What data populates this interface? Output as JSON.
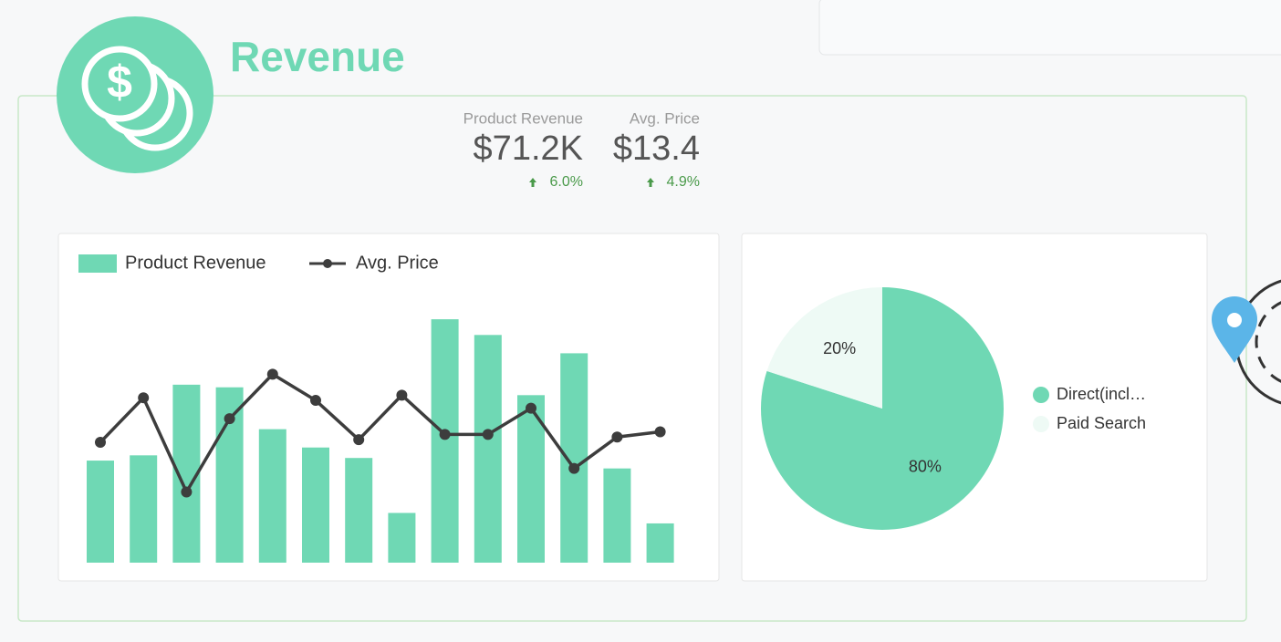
{
  "header": {
    "title": "Revenue"
  },
  "kpis": [
    {
      "label": "Product Revenue",
      "value": "$71.2K",
      "change": "6.0%"
    },
    {
      "label": "Avg. Price",
      "value": "$13.4",
      "change": "4.9%"
    }
  ],
  "chart_data": [
    {
      "type": "bar",
      "categories": [
        null,
        null,
        null,
        null,
        null,
        null,
        null,
        null,
        null,
        null,
        null,
        null,
        null,
        null
      ],
      "series": [
        {
          "name": "Product Revenue",
          "type": "bar",
          "color": "#6fd8b4",
          "values": [
            39,
            41,
            68,
            67,
            51,
            44,
            40,
            19,
            93,
            87,
            64,
            80,
            36,
            15
          ]
        },
        {
          "name": "Avg. Price",
          "type": "line",
          "color": "#3d3d3d",
          "values": [
            46,
            63,
            27,
            55,
            72,
            62,
            47,
            64,
            49,
            49,
            59,
            36,
            48,
            50
          ]
        }
      ],
      "ylim": [
        0,
        100
      ],
      "legend": "top-left"
    },
    {
      "type": "pie",
      "categories": [
        "Direct(incl…",
        "Paid Search"
      ],
      "values": [
        80,
        20
      ],
      "value_labels": [
        "80%",
        "20%"
      ],
      "colors": [
        "#6fd8b4",
        "#eefaf5"
      ],
      "legend": "right"
    }
  ]
}
